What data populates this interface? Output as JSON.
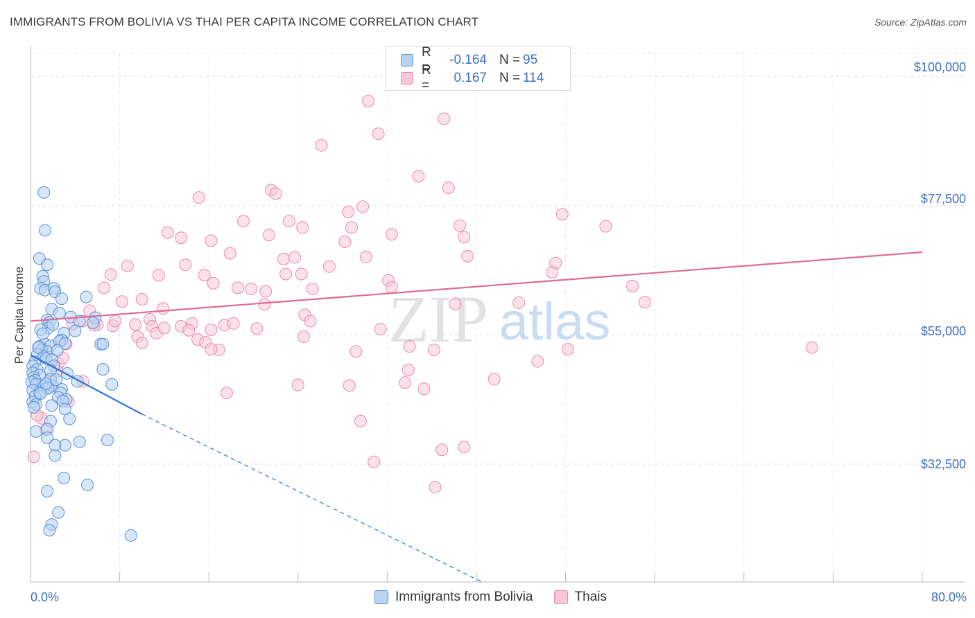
{
  "header": {
    "title": "IMMIGRANTS FROM BOLIVIA VS THAI PER CAPITA INCOME CORRELATION CHART",
    "source": "Source: ZipAtlas.com"
  },
  "legend_top": {
    "rows": [
      {
        "r_label": "R =",
        "r_value": "-0.164",
        "n_label": "N =",
        "n_value": "95"
      },
      {
        "r_label": "R =",
        "r_value": "0.167",
        "n_label": "N =",
        "n_value": "114"
      }
    ]
  },
  "legend_bottom": {
    "items": [
      "Immigrants from Bolivia",
      "Thais"
    ]
  },
  "watermark": {
    "zip": "ZIP",
    "atlas": "atlas"
  },
  "colors": {
    "series1_fill": "#b8d3f3",
    "series1_stroke": "#5a8fd6",
    "series1_line": "#2e74d4",
    "series2_fill": "#f8c8d8",
    "series2_stroke": "#e88aaa",
    "series2_line": "#e06a93",
    "axis_text": "#3b6fc9"
  },
  "chart_data": {
    "type": "scatter",
    "title": "IMMIGRANTS FROM BOLIVIA VS THAI PER CAPITA INCOME CORRELATION CHART",
    "xlabel": "",
    "ylabel": "Per Capita Income",
    "xlim": [
      0,
      80
    ],
    "ylim": [
      12000,
      104000
    ],
    "x_tick_labels": [
      "0.0%",
      "80.0%"
    ],
    "y_ticks": [
      32500,
      55000,
      77500,
      100000
    ],
    "y_tick_labels": [
      "$32,500",
      "$55,000",
      "$77,500",
      "$100,000"
    ],
    "grid": true,
    "series": [
      {
        "name": "Immigrants from Bolivia",
        "r": -0.164,
        "n": 95,
        "trend": {
          "x0": 0,
          "y0": 51500,
          "x1": 10,
          "y1": 41200,
          "dash_x1": 40.5,
          "dash_y1": 12000
        },
        "points": [
          [
            1.2,
            79800
          ],
          [
            1.3,
            73200
          ],
          [
            0.8,
            68300
          ],
          [
            1.5,
            67200
          ],
          [
            1.1,
            65200
          ],
          [
            1.2,
            64300
          ],
          [
            0.9,
            63100
          ],
          [
            1.3,
            62800
          ],
          [
            2.1,
            63100
          ],
          [
            2.2,
            62500
          ],
          [
            2.8,
            61300
          ],
          [
            5.0,
            61600
          ],
          [
            1.9,
            59500
          ],
          [
            2.6,
            58800
          ],
          [
            3.6,
            58100
          ],
          [
            1.5,
            57600
          ],
          [
            1.7,
            57200
          ],
          [
            1.6,
            56200
          ],
          [
            4.4,
            57400
          ],
          [
            5.8,
            58000
          ],
          [
            5.6,
            57100
          ],
          [
            0.9,
            55900
          ],
          [
            3.0,
            55300
          ],
          [
            2.8,
            54100
          ],
          [
            1.3,
            53400
          ],
          [
            1.8,
            53100
          ],
          [
            2.6,
            53900
          ],
          [
            0.8,
            53000
          ],
          [
            3.1,
            53500
          ],
          [
            6.3,
            53400
          ],
          [
            6.5,
            53400
          ],
          [
            1.0,
            52400
          ],
          [
            1.5,
            52100
          ],
          [
            2.4,
            52300
          ],
          [
            0.6,
            51600
          ],
          [
            1.2,
            51200
          ],
          [
            1.4,
            50900
          ],
          [
            1.9,
            50700
          ],
          [
            0.4,
            50300
          ],
          [
            0.2,
            49600
          ],
          [
            2.1,
            49600
          ],
          [
            0.6,
            49000
          ],
          [
            1.8,
            48800
          ],
          [
            6.5,
            49000
          ],
          [
            0.2,
            48400
          ],
          [
            0.8,
            48000
          ],
          [
            3.3,
            48300
          ],
          [
            0.3,
            47600
          ],
          [
            0.4,
            47100
          ],
          [
            0.1,
            46800
          ],
          [
            1.8,
            47300
          ],
          [
            4.2,
            46900
          ],
          [
            0.5,
            46400
          ],
          [
            1.2,
            46000
          ],
          [
            1.5,
            45800
          ],
          [
            2.0,
            46100
          ],
          [
            7.3,
            46400
          ],
          [
            0.2,
            45400
          ],
          [
            1.6,
            45700
          ],
          [
            2.8,
            45500
          ],
          [
            0.8,
            45000
          ],
          [
            2.7,
            44900
          ],
          [
            0.4,
            44300
          ],
          [
            2.5,
            44100
          ],
          [
            3.2,
            43800
          ],
          [
            0.2,
            43300
          ],
          [
            2.9,
            43500
          ],
          [
            0.5,
            42900
          ],
          [
            1.9,
            42700
          ],
          [
            3.1,
            42100
          ],
          [
            0.3,
            42400
          ],
          [
            3.5,
            40400
          ],
          [
            1.8,
            40000
          ],
          [
            0.5,
            38200
          ],
          [
            1.5,
            38600
          ],
          [
            1.5,
            37100
          ],
          [
            4.4,
            36400
          ],
          [
            6.9,
            36700
          ],
          [
            3.1,
            35800
          ],
          [
            2.2,
            35800
          ],
          [
            2.2,
            34000
          ],
          [
            3.0,
            30100
          ],
          [
            5.1,
            28900
          ],
          [
            1.5,
            27800
          ],
          [
            2.5,
            24100
          ],
          [
            1.9,
            22000
          ],
          [
            1.7,
            21000
          ],
          [
            9.0,
            20100
          ],
          [
            0.9,
            44800
          ],
          [
            1.4,
            46500
          ],
          [
            2.3,
            47200
          ],
          [
            0.7,
            52800
          ],
          [
            4.0,
            55700
          ],
          [
            2.0,
            56800
          ],
          [
            1.1,
            55200
          ]
        ]
      },
      {
        "name": "Thais",
        "r": 0.167,
        "n": 114,
        "trend": {
          "x0": 0,
          "y0": 57400,
          "x1": 80,
          "y1": 69400
        },
        "points": [
          [
            30.3,
            95700
          ],
          [
            37.1,
            92600
          ],
          [
            31.2,
            90000
          ],
          [
            26.1,
            88000
          ],
          [
            34.8,
            82600
          ],
          [
            37.5,
            80600
          ],
          [
            21.6,
            80200
          ],
          [
            22.0,
            79600
          ],
          [
            15.1,
            78900
          ],
          [
            29.8,
            77300
          ],
          [
            28.5,
            76400
          ],
          [
            47.7,
            76000
          ],
          [
            38.5,
            74000
          ],
          [
            23.2,
            74800
          ],
          [
            19.1,
            74800
          ],
          [
            28.8,
            73700
          ],
          [
            24.4,
            73700
          ],
          [
            51.6,
            73900
          ],
          [
            12.3,
            72800
          ],
          [
            13.5,
            71900
          ],
          [
            32.4,
            72500
          ],
          [
            21.4,
            72400
          ],
          [
            16.2,
            71400
          ],
          [
            38.9,
            72000
          ],
          [
            28.2,
            71200
          ],
          [
            17.9,
            69200
          ],
          [
            39.2,
            68700
          ],
          [
            22.7,
            68200
          ],
          [
            23.7,
            68500
          ],
          [
            30.1,
            68600
          ],
          [
            47.1,
            67500
          ],
          [
            8.7,
            67000
          ],
          [
            13.9,
            67200
          ],
          [
            26.8,
            66900
          ],
          [
            7.2,
            65500
          ],
          [
            11.5,
            65400
          ],
          [
            15.6,
            65400
          ],
          [
            22.9,
            65600
          ],
          [
            24.3,
            65600
          ],
          [
            46.8,
            65900
          ],
          [
            32.1,
            64500
          ],
          [
            16.4,
            64000
          ],
          [
            6.6,
            63200
          ],
          [
            18.6,
            63200
          ],
          [
            19.8,
            63000
          ],
          [
            21.1,
            62600
          ],
          [
            25.3,
            63000
          ],
          [
            32.4,
            63300
          ],
          [
            54.0,
            63500
          ],
          [
            8.2,
            60800
          ],
          [
            10.0,
            61200
          ],
          [
            21.0,
            60300
          ],
          [
            38.1,
            60400
          ],
          [
            43.8,
            60600
          ],
          [
            55.1,
            60700
          ],
          [
            5.3,
            59200
          ],
          [
            11.9,
            59600
          ],
          [
            24.6,
            58500
          ],
          [
            10.7,
            57700
          ],
          [
            14.5,
            57000
          ],
          [
            4.7,
            57400
          ],
          [
            3.8,
            56900
          ],
          [
            6.0,
            56800
          ],
          [
            7.4,
            56600
          ],
          [
            10.9,
            56500
          ],
          [
            13.5,
            56500
          ],
          [
            7.6,
            57400
          ],
          [
            9.4,
            56800
          ],
          [
            17.4,
            56700
          ],
          [
            18.2,
            57000
          ],
          [
            25.1,
            57400
          ],
          [
            20.3,
            56100
          ],
          [
            31.4,
            56000
          ],
          [
            14.2,
            55800
          ],
          [
            11.3,
            55300
          ],
          [
            9.6,
            54700
          ],
          [
            24.5,
            54700
          ],
          [
            16.2,
            55900
          ],
          [
            15.0,
            54200
          ],
          [
            15.7,
            53700
          ],
          [
            3.2,
            53400
          ],
          [
            34.0,
            53000
          ],
          [
            10.0,
            53600
          ],
          [
            29.2,
            52100
          ],
          [
            16.9,
            52400
          ],
          [
            16.2,
            52500
          ],
          [
            36.2,
            52400
          ],
          [
            48.2,
            52500
          ],
          [
            70.1,
            52800
          ],
          [
            45.5,
            50400
          ],
          [
            33.9,
            48900
          ],
          [
            41.6,
            47300
          ],
          [
            4.7,
            46900
          ],
          [
            24.0,
            46300
          ],
          [
            33.6,
            46700
          ],
          [
            28.6,
            46200
          ],
          [
            35.3,
            45600
          ],
          [
            17.6,
            44900
          ],
          [
            3.4,
            43400
          ],
          [
            29.6,
            40000
          ],
          [
            1.0,
            40500
          ],
          [
            38.9,
            35500
          ],
          [
            36.9,
            35000
          ],
          [
            30.8,
            32900
          ],
          [
            36.3,
            28500
          ],
          [
            1.4,
            38500
          ],
          [
            2.5,
            50000
          ],
          [
            2.9,
            51000
          ],
          [
            1.8,
            47000
          ],
          [
            2.4,
            48700
          ],
          [
            0.3,
            33800
          ],
          [
            0.6,
            41000
          ],
          [
            5.7,
            56700
          ],
          [
            12.0,
            56200
          ]
        ]
      }
    ]
  }
}
